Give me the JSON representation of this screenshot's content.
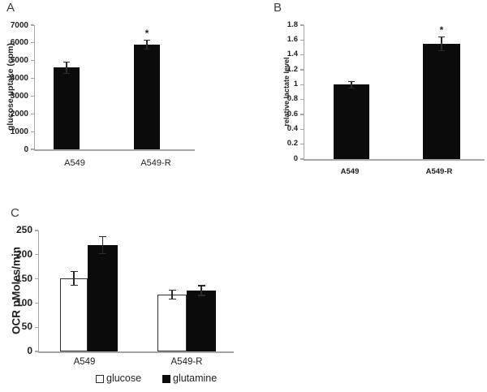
{
  "colors": {
    "background": "#ffffff",
    "axis_line": "#a6a6a6",
    "text": "#1f1f1f",
    "bar_black": "#0b0b0b",
    "bar_white": "#ffffff",
    "bar_outline": "#2e2e2e",
    "error_bar": "#2b2b2b"
  },
  "chart_data": [
    {
      "panel_label": "A",
      "type": "bar",
      "ylabel": "glucose uptake (cpm)",
      "categories": [
        "A549",
        "A549-R"
      ],
      "values": [
        4600,
        5900
      ],
      "errors": [
        350,
        280
      ],
      "significance": [
        "",
        "*"
      ],
      "yticks": [
        "0",
        "1000",
        "2000",
        "3000",
        "4000",
        "5000",
        "6000",
        "7000"
      ],
      "ylim": [
        0,
        7000
      ],
      "bar_color": "#0b0b0b",
      "grid": "off",
      "legend_position": "none"
    },
    {
      "panel_label": "B",
      "type": "bar",
      "ylabel": "relative lactate level",
      "categories": [
        "A549",
        "A549-R"
      ],
      "values": [
        1.0,
        1.55
      ],
      "errors": [
        0.05,
        0.1
      ],
      "significance": [
        "",
        "*"
      ],
      "yticks": [
        "0",
        "0.2",
        "0.4",
        "0.6",
        "0.8",
        "1",
        "1.2",
        "1.4",
        "1.6",
        "1.8"
      ],
      "ylim": [
        0,
        1.8
      ],
      "bar_color": "#0b0b0b",
      "grid": "off",
      "legend_position": "none"
    },
    {
      "panel_label": "C",
      "type": "bar",
      "ylabel": "OCR pMoles/min",
      "categories": [
        "A549",
        "A549-R"
      ],
      "series": [
        {
          "name": "glucose",
          "fill": "#ffffff",
          "values": [
            151,
            118
          ],
          "errors": [
            15,
            10
          ]
        },
        {
          "name": "glutamine",
          "fill": "#0b0b0b",
          "values": [
            220,
            126
          ],
          "errors": [
            18,
            11
          ]
        }
      ],
      "yticks": [
        "0",
        "50",
        "100",
        "150",
        "200",
        "250"
      ],
      "ylim": [
        0,
        250
      ],
      "grid": "off",
      "legend": {
        "position": "bottom",
        "entries": [
          "glucose",
          "glutamine"
        ]
      }
    }
  ]
}
